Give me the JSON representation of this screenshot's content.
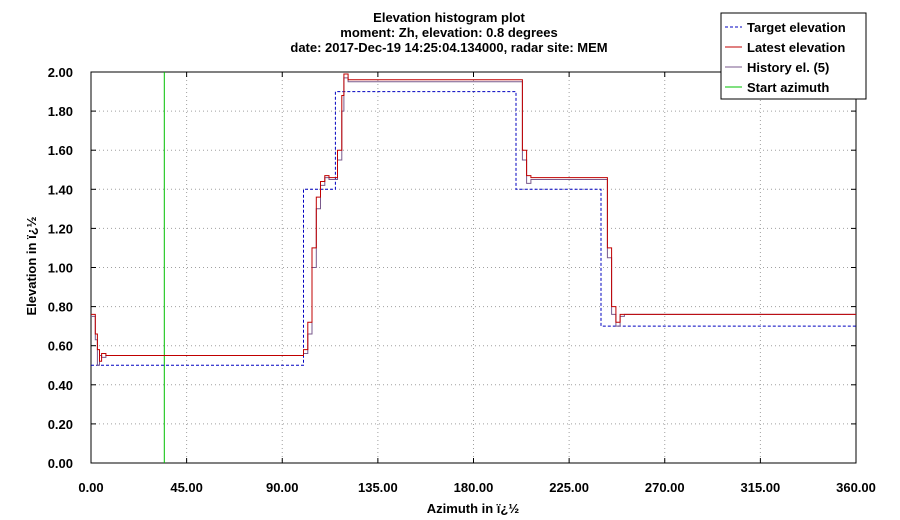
{
  "chart_data": {
    "type": "line",
    "title": [
      "Elevation histogram plot",
      "moment: Zh, elevation: 0.8 degrees",
      "date: 2017-Dec-19 14:25:04.134000, radar site: MEM"
    ],
    "xlabel": "Azimuth in ï¿½",
    "ylabel": "Elevation in ï¿½",
    "xlim": [
      0,
      360
    ],
    "ylim": [
      0,
      2.0
    ],
    "x_ticks": [
      "0.00",
      "45.00",
      "90.00",
      "135.00",
      "180.00",
      "225.00",
      "270.00",
      "315.00",
      "360.00"
    ],
    "y_ticks": [
      "0.00",
      "0.20",
      "0.40",
      "0.60",
      "0.80",
      "1.00",
      "1.20",
      "1.40",
      "1.60",
      "1.80",
      "2.00"
    ],
    "grid": true,
    "legend_position": "top-right",
    "series": [
      {
        "name": "Target elevation",
        "color": "#0000c0",
        "style": "dashed",
        "x": [
          0,
          100,
          100,
          115,
          115,
          120,
          120,
          200,
          200,
          240,
          240,
          360
        ],
        "y": [
          0.5,
          0.5,
          1.4,
          1.4,
          1.9,
          1.9,
          1.9,
          1.9,
          1.4,
          1.4,
          0.7,
          0.7
        ]
      },
      {
        "name": "Latest elevation",
        "color": "#c00000",
        "style": "solid",
        "x": [
          0,
          2,
          2,
          3,
          3,
          4,
          4,
          5,
          5,
          7,
          7,
          100,
          100,
          102,
          102,
          104,
          104,
          106,
          106,
          108,
          108,
          110,
          110,
          112,
          112,
          116,
          116,
          118,
          118,
          119,
          119,
          121,
          121,
          123,
          123,
          203,
          203,
          205,
          205,
          207,
          207,
          209,
          209,
          243,
          243,
          245,
          245,
          247,
          247,
          249,
          249,
          251,
          251,
          360
        ],
        "y": [
          0.76,
          0.76,
          0.66,
          0.66,
          0.58,
          0.58,
          0.52,
          0.52,
          0.56,
          0.56,
          0.55,
          0.55,
          0.58,
          0.58,
          0.72,
          0.72,
          1.1,
          1.1,
          1.36,
          1.36,
          1.44,
          1.44,
          1.47,
          1.47,
          1.46,
          1.46,
          1.6,
          1.6,
          1.88,
          1.88,
          1.99,
          1.99,
          1.96,
          1.96,
          1.96,
          1.96,
          1.6,
          1.6,
          1.47,
          1.47,
          1.46,
          1.46,
          1.46,
          1.46,
          1.1,
          1.1,
          0.8,
          0.8,
          0.72,
          0.72,
          0.76,
          0.76,
          0.76,
          0.76
        ]
      },
      {
        "name": "History el. (5)",
        "color": "#7a5a8c",
        "style": "solid",
        "x": [
          0,
          2,
          2,
          3,
          3,
          4,
          4,
          5,
          5,
          7,
          7,
          100,
          100,
          102,
          102,
          104,
          104,
          106,
          106,
          108,
          108,
          110,
          110,
          112,
          112,
          116,
          116,
          118,
          118,
          119,
          119,
          121,
          121,
          123,
          123,
          203,
          203,
          205,
          205,
          207,
          207,
          209,
          209,
          243,
          243,
          245,
          245,
          247,
          247,
          249,
          249,
          251,
          251,
          360
        ],
        "y": [
          0.75,
          0.75,
          0.63,
          0.63,
          0.5,
          0.5,
          0.55,
          0.55,
          0.54,
          0.54,
          0.55,
          0.55,
          0.56,
          0.56,
          0.66,
          0.66,
          1.0,
          1.0,
          1.3,
          1.3,
          1.42,
          1.42,
          1.46,
          1.46,
          1.45,
          1.45,
          1.55,
          1.55,
          1.8,
          1.8,
          1.97,
          1.97,
          1.95,
          1.95,
          1.95,
          1.95,
          1.55,
          1.55,
          1.43,
          1.43,
          1.45,
          1.45,
          1.45,
          1.45,
          1.05,
          1.05,
          0.76,
          0.76,
          0.7,
          0.7,
          0.75,
          0.75,
          0.76,
          0.76
        ]
      },
      {
        "name": "Start azimuth",
        "color": "#00c000",
        "style": "solid",
        "x": [
          34.5,
          34.5
        ],
        "y": [
          0,
          2.0
        ]
      }
    ]
  }
}
